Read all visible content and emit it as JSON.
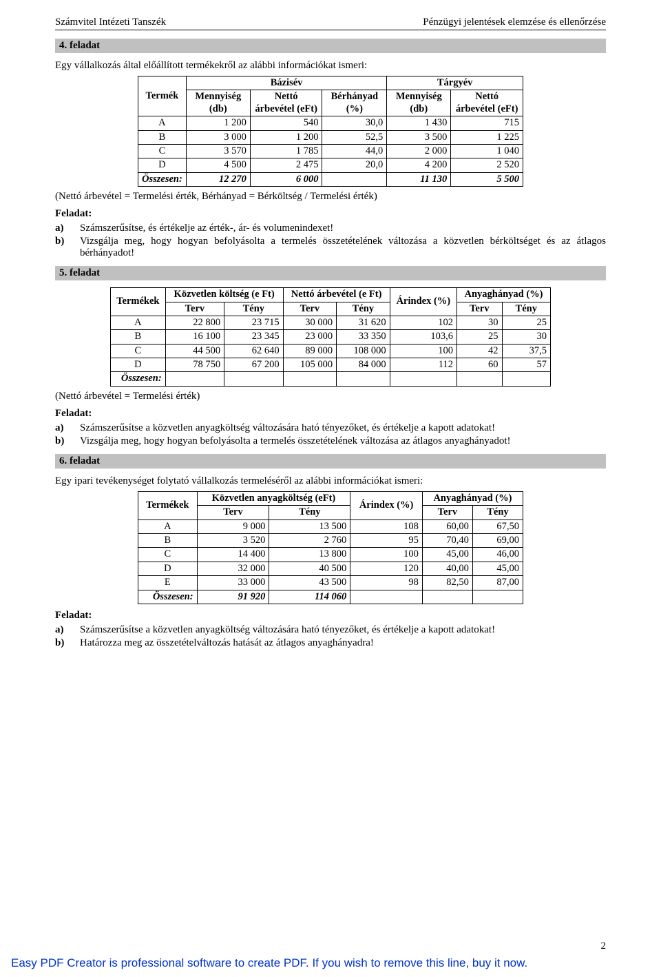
{
  "header": {
    "left": "Számvitel Intézeti Tanszék",
    "right": "Pénzügyi jelentések elemzése és ellenőrzése"
  },
  "s4": {
    "title": "4. feladat",
    "intro": "Egy vállalkozás által előállított termékekről az alábbi információkat ismeri:",
    "tbl": {
      "h_termek": "Termék",
      "h_bazis": "Bázisév",
      "h_targy": "Tárgyév",
      "h_menny": "Mennyiség (db)",
      "h_netto": "Nettó árbevétel (eFt)",
      "h_berh": "Bérhányad (%)",
      "rows": [
        {
          "t": "A",
          "m1": "1 200",
          "n1": "540",
          "b": "30,0",
          "m2": "1 430",
          "n2": "715"
        },
        {
          "t": "B",
          "m1": "3 000",
          "n1": "1 200",
          "b": "52,5",
          "m2": "3 500",
          "n2": "1 225"
        },
        {
          "t": "C",
          "m1": "3 570",
          "n1": "1 785",
          "b": "44,0",
          "m2": "2 000",
          "n2": "1 040"
        },
        {
          "t": "D",
          "m1": "4 500",
          "n1": "2 475",
          "b": "20,0",
          "m2": "4 200",
          "n2": "2 520"
        }
      ],
      "sum": {
        "t": "Összesen:",
        "m1": "12 270",
        "n1": "6 000",
        "b": "",
        "m2": "11 130",
        "n2": "5 500"
      }
    },
    "note": "(Nettó árbevétel = Termelési érték, Bérhányad = Bérköltség / Termelési érték)",
    "feladat": "Feladat:",
    "tasks": [
      {
        "mk": "a)",
        "tx": "Számszerűsítse, és értékelje az érték-, ár- és volumenindexet!"
      },
      {
        "mk": "b)",
        "tx": "Vizsgálja meg, hogy hogyan befolyásolta a termelés összetételének változása a közvetlen bérköltséget és az átlagos bérhányadot!"
      }
    ]
  },
  "s5": {
    "title": "5. feladat",
    "tbl": {
      "h_term": "Termékek",
      "h_kk": "Közvetlen költség (e Ft)",
      "h_na": "Nettó árbevétel (e Ft)",
      "h_ai": "Árindex (%)",
      "h_ah": "Anyaghányad (%)",
      "h_terv": "Terv",
      "h_teny": "Tény",
      "rows": [
        {
          "t": "A",
          "kk1": "22 800",
          "kk2": "23 715",
          "na1": "30 000",
          "na2": "31 620",
          "ai": "102",
          "ah1": "30",
          "ah2": "25"
        },
        {
          "t": "B",
          "kk1": "16 100",
          "kk2": "23 345",
          "na1": "23 000",
          "na2": "33 350",
          "ai": "103,6",
          "ah1": "25",
          "ah2": "30"
        },
        {
          "t": "C",
          "kk1": "44 500",
          "kk2": "62 640",
          "na1": "89 000",
          "na2": "108 000",
          "ai": "100",
          "ah1": "42",
          "ah2": "37,5"
        },
        {
          "t": "D",
          "kk1": "78 750",
          "kk2": "67 200",
          "na1": "105 000",
          "na2": "84 000",
          "ai": "112",
          "ah1": "60",
          "ah2": "57"
        }
      ],
      "sum": {
        "t": "Összesen:"
      }
    },
    "note": "(Nettó árbevétel = Termelési érték)",
    "feladat": "Feladat:",
    "tasks": [
      {
        "mk": "a)",
        "tx": "Számszerűsítse a közvetlen anyagköltség változására ható tényezőket, és értékelje a kapott adatokat!"
      },
      {
        "mk": "b)",
        "tx": "Vizsgálja meg, hogy hogyan befolyásolta a termelés összetételének változása az átlagos anyaghányadot!"
      }
    ]
  },
  "s6": {
    "title": "6. feladat",
    "intro": "Egy ipari tevékenységet folytató vállalkozás termeléséről az alábbi információkat ismeri:",
    "tbl": {
      "h_term": "Termékek",
      "h_kak": "Közvetlen anyagköltség (eFt)",
      "h_ai": "Árindex (%)",
      "h_ah": "Anyaghányad (%)",
      "h_terv": "Terv",
      "h_teny": "Tény",
      "rows": [
        {
          "t": "A",
          "k1": "9 000",
          "k2": "13 500",
          "ai": "108",
          "ah1": "60,00",
          "ah2": "67,50"
        },
        {
          "t": "B",
          "k1": "3 520",
          "k2": "2 760",
          "ai": "95",
          "ah1": "70,40",
          "ah2": "69,00"
        },
        {
          "t": "C",
          "k1": "14 400",
          "k2": "13 800",
          "ai": "100",
          "ah1": "45,00",
          "ah2": "46,00"
        },
        {
          "t": "D",
          "k1": "32 000",
          "k2": "40 500",
          "ai": "120",
          "ah1": "40,00",
          "ah2": "45,00"
        },
        {
          "t": "E",
          "k1": "33 000",
          "k2": "43 500",
          "ai": "98",
          "ah1": "82,50",
          "ah2": "87,00"
        }
      ],
      "sum": {
        "t": "Összesen:",
        "k1": "91 920",
        "k2": "114 060"
      }
    },
    "feladat": "Feladat:",
    "tasks": [
      {
        "mk": "a)",
        "tx": "Számszerűsítse a közvetlen anyagköltség változására ható tényezőket, és értékelje a kapott adatokat!"
      },
      {
        "mk": "b)",
        "tx": "Határozza meg az összetételváltozás hatását az átlagos anyaghányadra!"
      }
    ]
  },
  "pagenum": "2",
  "pdfline_pre": "Easy PDF Creator is professional software to create PDF. If you wish to remove this line, ",
  "pdfline_link": "buy it now",
  "pdfline_post": "."
}
